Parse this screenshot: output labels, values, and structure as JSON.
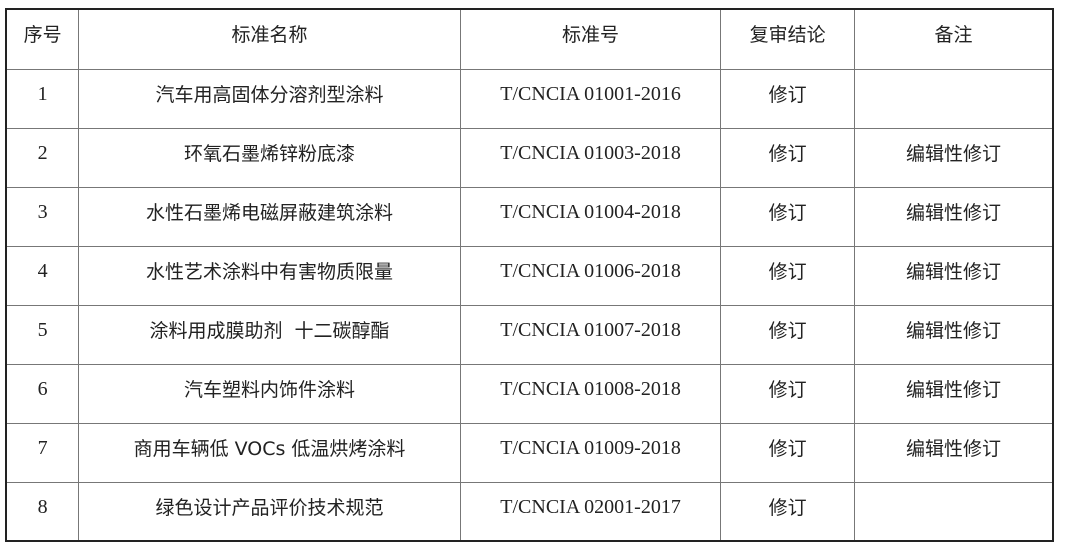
{
  "headers": [
    "序号",
    "标准名称",
    "标准号",
    "复审结论",
    "备注"
  ],
  "rows": [
    {
      "no": "1",
      "name": "汽车用高固体分溶剂型涂料",
      "code": "T/CNCIA 01001-2016",
      "conclusion": "修订",
      "note": ""
    },
    {
      "no": "2",
      "name": "环氧石墨烯锌粉底漆",
      "code": "T/CNCIA 01003-2018",
      "conclusion": "修订",
      "note": "编辑性修订"
    },
    {
      "no": "3",
      "name": "水性石墨烯电磁屏蔽建筑涂料",
      "code": "T/CNCIA 01004-2018",
      "conclusion": "修订",
      "note": "编辑性修订"
    },
    {
      "no": "4",
      "name": "水性艺术涂料中有害物质限量",
      "code": "T/CNCIA 01006-2018",
      "conclusion": "修订",
      "note": "编辑性修订"
    },
    {
      "no": "5",
      "name": "涂料用成膜助剂  十二碳醇酯",
      "code": "T/CNCIA 01007-2018",
      "conclusion": "修订",
      "note": "编辑性修订"
    },
    {
      "no": "6",
      "name": "汽车塑料内饰件涂料",
      "code": "T/CNCIA 01008-2018",
      "conclusion": "修订",
      "note": "编辑性修订"
    },
    {
      "no": "7",
      "name": "商用车辆低 VOCs 低温烘烤涂料",
      "code": "T/CNCIA 01009-2018",
      "conclusion": "修订",
      "note": "编辑性修订"
    },
    {
      "no": "8",
      "name": "绿色设计产品评价技术规范",
      "code": "T/CNCIA 02001-2017",
      "conclusion": "修订",
      "note": ""
    }
  ]
}
